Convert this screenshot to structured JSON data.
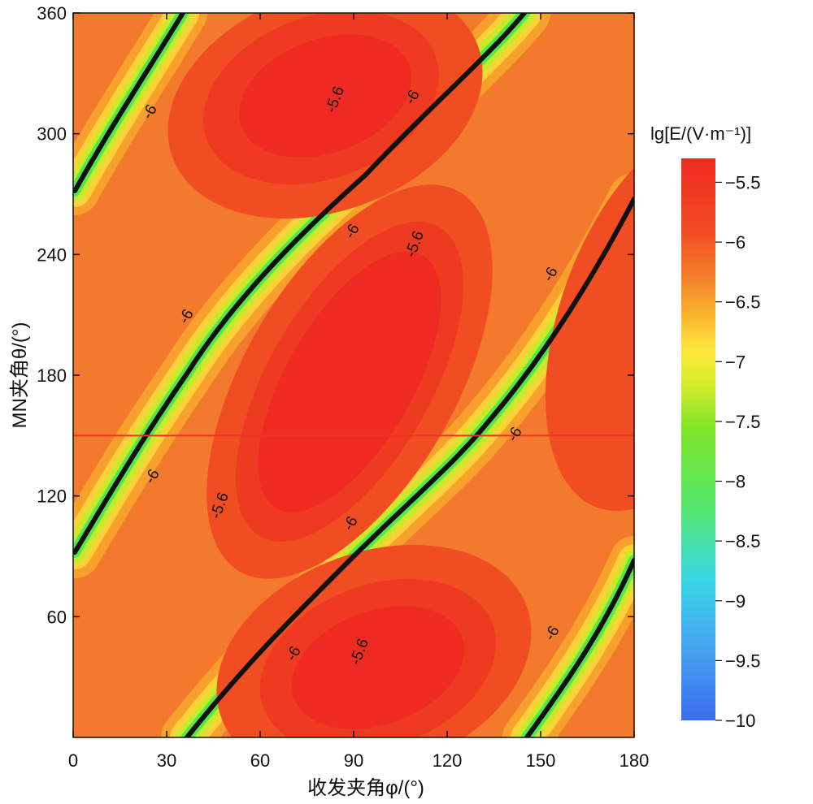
{
  "chart_data": {
    "type": "heatmap",
    "title": "",
    "xlabel": "收发夹角φ/(°)",
    "ylabel": "MN夹角θ/(°)",
    "xlim": [
      0,
      180
    ],
    "ylim": [
      0,
      360
    ],
    "x_ticks": [
      0,
      30,
      60,
      90,
      120,
      150,
      180
    ],
    "y_ticks": [
      60,
      120,
      180,
      240,
      300,
      360
    ],
    "colorbar": {
      "title": "lg[E/(V·m⁻¹)]",
      "range": [
        -10,
        -5.3
      ],
      "ticks": [
        -5.5,
        -6,
        -6.5,
        -7,
        -7.5,
        -8,
        -8.5,
        -9,
        -9.5,
        -10
      ],
      "colors": [
        "#3a6cf0",
        "#45a0f0",
        "#39d6e6",
        "#53e66b",
        "#7fe52a",
        "#d9ec2c",
        "#fde73a",
        "#f9b42f",
        "#f47e2a",
        "#f24b22",
        "#ef2a22"
      ]
    },
    "contour_lines": [
      {
        "level": -6,
        "label": "-6",
        "label_count": 10
      },
      {
        "level": -5.6,
        "label": "-5.6",
        "label_count": 4
      }
    ],
    "reference_line": {
      "y": 150,
      "color": "#ee3322"
    },
    "legend": "right"
  },
  "labels": {
    "contour_a": "-6",
    "contour_b": "-5.6"
  }
}
